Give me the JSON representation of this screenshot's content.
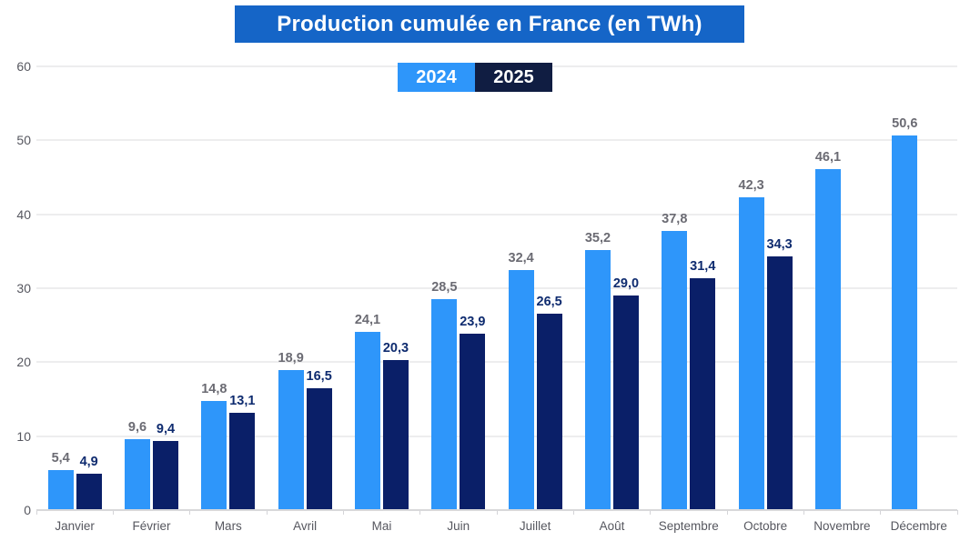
{
  "title": "Production cumulée en France (en TWh)",
  "legend": {
    "items": [
      {
        "label": "2024",
        "color": "#2e96fa",
        "text_color": "#ffffff"
      },
      {
        "label": "2025",
        "color": "#101d42",
        "text_color": "#ffffff"
      }
    ]
  },
  "colors": {
    "title_bg": "#1565c7",
    "title_text": "#ffffff",
    "bar_2024": "#2e96fa",
    "bar_2025": "#0a1f68",
    "value_label_2024": "#6b6b73",
    "value_label_2025": "#0e2b6f",
    "gridline": "#ededee",
    "axis_line": "#d8d8da",
    "axis_text": "#56575f"
  },
  "chart_data": {
    "type": "bar",
    "title": "Production cumulée en France (en TWh)",
    "categories": [
      "Janvier",
      "Février",
      "Mars",
      "Avril",
      "Mai",
      "Juin",
      "Juillet",
      "Août",
      "Septembre",
      "Octobre",
      "Novembre",
      "Décembre"
    ],
    "series": [
      {
        "name": "2024",
        "color": "#2e96fa",
        "values": [
          5.4,
          9.6,
          14.8,
          18.9,
          24.1,
          28.5,
          32.4,
          35.2,
          37.8,
          42.3,
          46.1,
          50.6
        ],
        "labels": [
          "5,4",
          "9,6",
          "14,8",
          "18,9",
          "24,1",
          "28,5",
          "32,4",
          "35,2",
          "37,8",
          "42,3",
          "46,1",
          "50,6"
        ]
      },
      {
        "name": "2025",
        "color": "#0a1f68",
        "values": [
          4.9,
          9.4,
          13.1,
          16.5,
          20.3,
          23.9,
          26.5,
          29.0,
          31.4,
          34.3,
          null,
          null
        ],
        "labels": [
          "4,9",
          "9,4",
          "13,1",
          "16,5",
          "20,3",
          "23,9",
          "26,5",
          "29,0",
          "31,4",
          "34,3",
          null,
          null
        ]
      }
    ],
    "xlabel": "",
    "ylabel": "",
    "ylim": [
      0,
      60
    ],
    "yticks": [
      0,
      10,
      20,
      30,
      40,
      50,
      60
    ],
    "grid": true,
    "legend_position": "top-center",
    "decimal_separator": ","
  }
}
